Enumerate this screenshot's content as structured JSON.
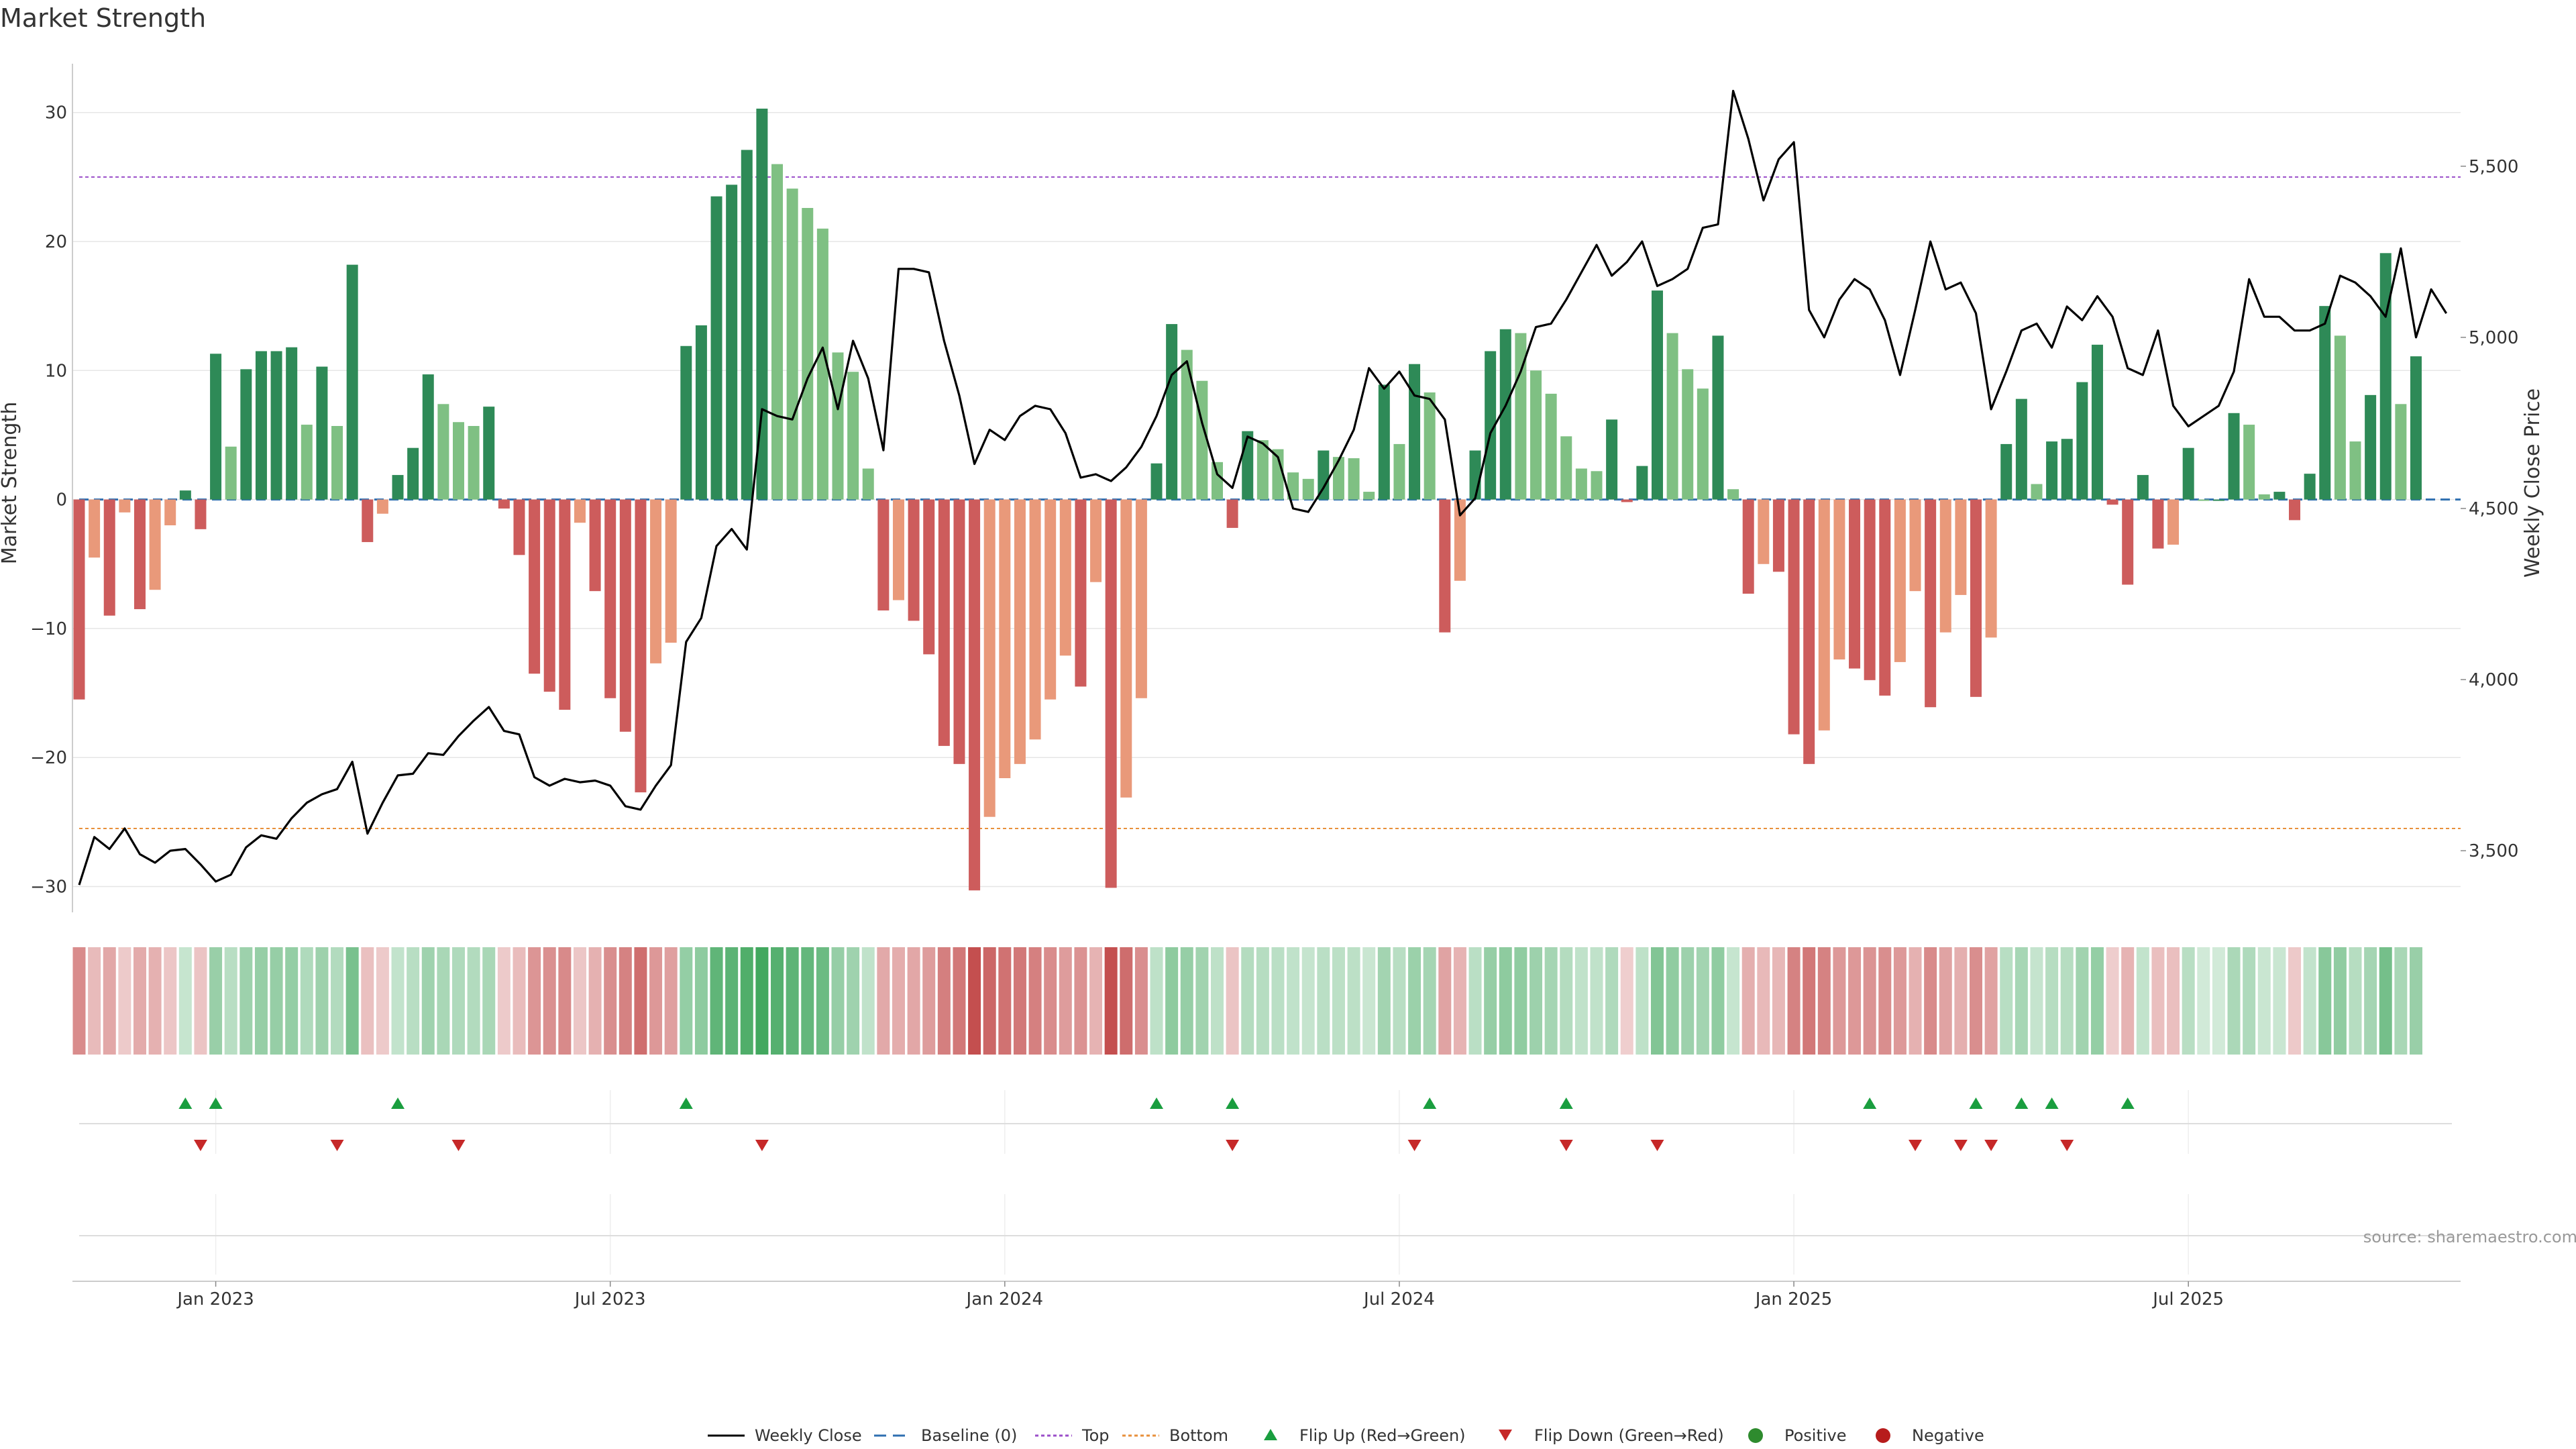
{
  "chart_data": {
    "type": "bar",
    "title": "Market Strength",
    "ylabel_left": "Market Strength",
    "ylabel_right": "Weekly Close Price",
    "source": "source: sharemaestro.com",
    "ylim_left": [
      -32,
      33
    ],
    "ylim_right": [
      3320,
      5770
    ],
    "yticks_left": [
      {
        "value": 30,
        "label": "30"
      },
      {
        "value": 20,
        "label": "20"
      },
      {
        "value": 10,
        "label": "10"
      },
      {
        "value": 0,
        "label": "0"
      },
      {
        "value": -10,
        "label": "−10"
      },
      {
        "value": -20,
        "label": "−20"
      },
      {
        "value": -30,
        "label": "−30"
      }
    ],
    "yticks_right": [
      {
        "value": 5500,
        "label": "5,500"
      },
      {
        "value": 5000,
        "label": "5,000"
      },
      {
        "value": 4500,
        "label": "4,500"
      },
      {
        "value": 4000,
        "label": "4,000"
      },
      {
        "value": 3500,
        "label": "3,500"
      }
    ],
    "xticks": [
      {
        "week": 9,
        "label": "Jan 2023"
      },
      {
        "week": 35,
        "label": "Jul 2023"
      },
      {
        "week": 61,
        "label": "Jan 2024"
      },
      {
        "week": 87,
        "label": "Jul 2024"
      },
      {
        "week": 113,
        "label": "Jan 2025"
      },
      {
        "week": 139,
        "label": "Jul 2025"
      }
    ],
    "top_threshold": 25,
    "bottom_threshold": -25.5,
    "baseline": 0,
    "strength": [
      -15.5,
      -4.5,
      -9,
      -1,
      -8.5,
      -7,
      -2,
      0.7,
      -2.3,
      11.3,
      4.1,
      10.1,
      11.5,
      11.5,
      11.8,
      5.8,
      10.3,
      5.7,
      18.2,
      -3.3,
      -1.1,
      1.9,
      4,
      9.7,
      7.4,
      6,
      5.7,
      7.2,
      -0.7,
      -4.3,
      -13.5,
      -14.9,
      -16.3,
      -1.8,
      -7.1,
      -15.4,
      -18,
      -22.7,
      -12.7,
      -11.1,
      11.9,
      13.5,
      23.5,
      24.4,
      27.1,
      30.3,
      26,
      24.1,
      22.6,
      21,
      11.4,
      9.9,
      2.4,
      -8.6,
      -7.8,
      -9.4,
      -12,
      -19.1,
      -20.5,
      -30.3,
      -24.6,
      -21.6,
      -20.5,
      -18.6,
      -15.5,
      -12.1,
      -14.5,
      -6.4,
      -30.1,
      -23.1,
      -15.4,
      2.8,
      13.6,
      11.6,
      9.2,
      2.9,
      -2.2,
      5.3,
      4.6,
      3.9,
      2.1,
      1.6,
      3.8,
      3.3,
      3.2,
      0.6,
      8.9,
      4.3,
      10.5,
      8.3,
      -10.3,
      -6.3,
      3.8,
      11.5,
      13.2,
      12.9,
      10,
      8.2,
      4.9,
      2.4,
      2.2,
      6.2,
      -0.2,
      2.6,
      16.2,
      12.9,
      10.1,
      8.6,
      12.7,
      0.8,
      -7.3,
      -5,
      -5.6,
      -18.2,
      -20.5,
      -17.9,
      -12.4,
      -13.1,
      -14,
      -15.2,
      -12.6,
      -7.1,
      -16.1,
      -10.3,
      -7.4,
      -15.3,
      -10.7,
      4.3,
      7.8,
      1.2,
      4.5,
      4.7,
      9.1,
      12,
      -0.4,
      -6.6,
      1.9,
      -3.8,
      -3.5,
      4,
      0,
      0,
      6.7,
      5.8,
      0.4,
      0.6,
      -1.6,
      2,
      15,
      12.7,
      4.5,
      8.1,
      19.1,
      7.4,
      11.1
    ],
    "close": [
      3400,
      3540,
      3505,
      3565,
      3490,
      3465,
      3500,
      3505,
      3460,
      3410,
      3430,
      3510,
      3545,
      3535,
      3595,
      3640,
      3665,
      3680,
      3760,
      3550,
      3640,
      3720,
      3725,
      3785,
      3780,
      3835,
      3880,
      3920,
      3850,
      3840,
      3715,
      3690,
      3710,
      3700,
      3705,
      3690,
      3630,
      3620,
      3690,
      3750,
      4110,
      4180,
      4390,
      4440,
      4380,
      4790,
      4770,
      4760,
      4880,
      4970,
      4790,
      4990,
      4880,
      4670,
      5200,
      5200,
      5190,
      4990,
      4830,
      4630,
      4730,
      4700,
      4770,
      4800,
      4790,
      4720,
      4590,
      4600,
      4580,
      4620,
      4680,
      4770,
      4890,
      4930,
      4750,
      4600,
      4560,
      4710,
      4690,
      4650,
      4500,
      4490,
      4560,
      4640,
      4730,
      4910,
      4850,
      4900,
      4830,
      4820,
      4760,
      4480,
      4530,
      4720,
      4800,
      4900,
      5030,
      5040,
      5110,
      5190,
      5270,
      5180,
      5220,
      5280,
      5150,
      5170,
      5200,
      5320,
      5330,
      5720,
      5580,
      5400,
      5520,
      5570,
      5080,
      5000,
      5110,
      5170,
      5140,
      5050,
      4890,
      5080,
      5280,
      5140,
      5160,
      5070,
      4790,
      4900,
      5020,
      5040,
      4970,
      5090,
      5050,
      5120,
      5060,
      4910,
      4890,
      5020,
      4800,
      4740,
      4770,
      4800,
      4900,
      5170,
      5060,
      5060,
      5020,
      5020,
      5040,
      5180,
      5160,
      5120,
      5060,
      5260,
      5000,
      5140,
      5070
    ],
    "flips_up": [
      7,
      9,
      21,
      40,
      71,
      76,
      89,
      98,
      118,
      125,
      128,
      130,
      135
    ],
    "flips_down": [
      8,
      17,
      25,
      45,
      76,
      88,
      98,
      104,
      121,
      124,
      126,
      131
    ]
  },
  "legend": [
    {
      "key": "weekly-close",
      "label": "Weekly Close",
      "color": "#000000"
    },
    {
      "key": "baseline",
      "label": "Baseline (0)",
      "color": "#2f6fb0"
    },
    {
      "key": "top",
      "label": "Top",
      "color": "#9b4fc9"
    },
    {
      "key": "bottom",
      "label": "Bottom",
      "color": "#e8913c"
    },
    {
      "key": "flip-up",
      "label": "Flip Up (Red→Green)",
      "color": "#1a9e3f"
    },
    {
      "key": "flip-down",
      "label": "Flip Down (Green→Red)",
      "color": "#c62828"
    },
    {
      "key": "positive",
      "label": "Positive",
      "color": "#2e8b2e"
    },
    {
      "key": "negative",
      "label": "Negative",
      "color": "#b71c1c"
    }
  ],
  "colors": {
    "pos_strong": "#2e8a57",
    "pos_weak": "#7fc083",
    "neg_strong": "#cd5c5c",
    "neg_weak": "#e9997a",
    "grid": "#e6e6e6",
    "axis": "#cccccc"
  }
}
